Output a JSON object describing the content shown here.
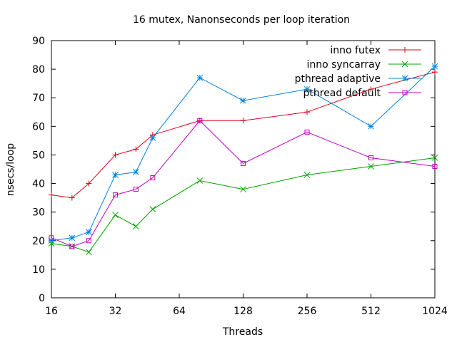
{
  "chart_data": {
    "type": "line",
    "title": "16 mutex, Nanonseconds per loop iteration",
    "xlabel": "Threads",
    "ylabel": "nsecs/loop",
    "x_scale": "log2",
    "xlim": [
      16,
      1024
    ],
    "ylim": [
      0,
      90
    ],
    "x_ticks": [
      "16",
      "32",
      "64",
      "128",
      "256",
      "512",
      "1024"
    ],
    "y_ticks": [
      "0",
      "10",
      "20",
      "30",
      "40",
      "50",
      "60",
      "70",
      "80",
      "90"
    ],
    "grid": false,
    "legend_position": "top-right",
    "x": [
      16,
      20,
      24,
      32,
      40,
      48,
      80,
      128,
      256,
      512,
      1024
    ],
    "series": [
      {
        "name": "inno futex",
        "color": "#e0001b",
        "marker": "plus",
        "values": [
          36,
          35,
          40,
          50,
          52,
          57,
          62,
          62,
          65,
          73,
          79
        ]
      },
      {
        "name": "inno syncarray",
        "color": "#00a000",
        "marker": "cross",
        "values": [
          19,
          18,
          16,
          29,
          25,
          31,
          41,
          38,
          43,
          46,
          49
        ]
      },
      {
        "name": "pthread adaptive",
        "color": "#0080e0",
        "marker": "star",
        "values": [
          20,
          21,
          23,
          43,
          44,
          56,
          77,
          69,
          73,
          60,
          81
        ]
      },
      {
        "name": "pthread default",
        "color": "#c000c0",
        "marker": "square",
        "values": [
          21,
          18,
          20,
          36,
          38,
          42,
          62,
          47,
          58,
          49,
          46
        ]
      }
    ]
  }
}
